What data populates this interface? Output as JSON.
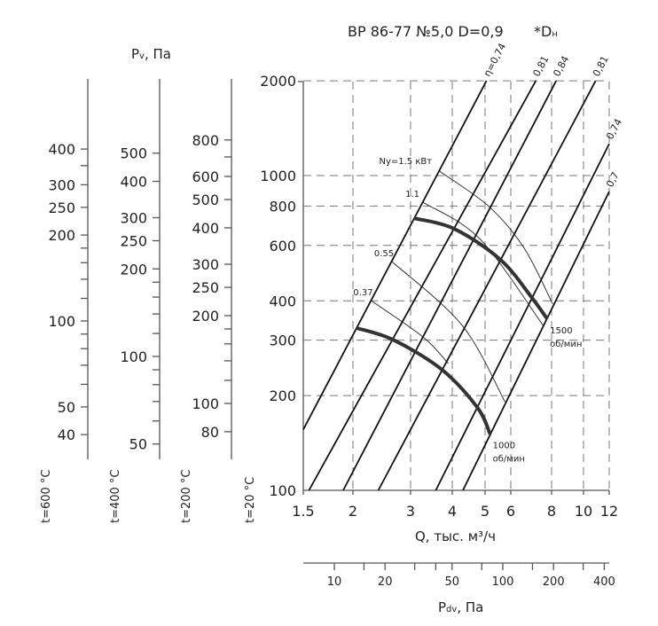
{
  "chart_data": {
    "type": "line",
    "title": "ВР 86-77 №5,0 D=0,9",
    "title_note": {
      "symbol": "*D",
      "sub": "н"
    },
    "grid": true,
    "x_axis": {
      "label": {
        "text": "Q, тыс. м³/ч"
      },
      "scale": "log",
      "range": [
        1.5,
        12
      ],
      "ticks": [
        1.5,
        2,
        3,
        4,
        5,
        6,
        8,
        10,
        12
      ]
    },
    "y_axis": {
      "label": {
        "symbol": "P",
        "sub": "v",
        "rest": ", Па"
      },
      "scale": "log",
      "range": [
        100,
        2000
      ],
      "ticks": [
        100,
        200,
        300,
        400,
        600,
        800,
        1000,
        2000
      ]
    },
    "temperature_scales": [
      {
        "label": "t=600 °C",
        "ticks": [
          40,
          50,
          100,
          200,
          250,
          300,
          400
        ],
        "minor": [
          60,
          70,
          80,
          90,
          120,
          140,
          160,
          180,
          350
        ]
      },
      {
        "label": "t=400 °C",
        "ticks": [
          50,
          100,
          200,
          250,
          300,
          400,
          500
        ],
        "minor": [
          60,
          70,
          80,
          90,
          120,
          140,
          160,
          180
        ]
      },
      {
        "label": "t=200 °C",
        "ticks": [
          80,
          100,
          200,
          250,
          300,
          400,
          500,
          600,
          800
        ],
        "minor": [
          120,
          140,
          160,
          180,
          700
        ]
      },
      {
        "label": "t=20 °C"
      }
    ],
    "pdv_axis": {
      "label": {
        "symbol": "P",
        "sub": "dv",
        "rest": ", Па"
      },
      "scale": "log",
      "ticks": [
        10,
        20,
        50,
        100,
        200,
        400
      ],
      "minor": [
        15,
        30,
        40,
        75,
        150,
        300
      ]
    },
    "efficiency_lines": [
      {
        "label": "η=0,74",
        "points": [
          [
            1.5,
            156
          ],
          [
            5.05,
            2000
          ]
        ]
      },
      {
        "label": "0,81",
        "points": [
          [
            1.55,
            100
          ],
          [
            7.16,
            2000
          ]
        ]
      },
      {
        "label": "0,84",
        "points": [
          [
            1.89,
            100
          ],
          [
            8.26,
            2000
          ]
        ]
      },
      {
        "label": "0,81",
        "points": [
          [
            2.39,
            100
          ],
          [
            10.9,
            2000
          ]
        ]
      },
      {
        "label": "0,74",
        "points": [
          [
            3.57,
            100
          ],
          [
            12,
            1262
          ]
        ]
      },
      {
        "label": "0,7",
        "points": [
          [
            4.3,
            100
          ],
          [
            12,
            890
          ]
        ]
      }
    ],
    "speed_curves": [
      {
        "label": "1500",
        "unit": "об/мин",
        "points": [
          [
            3.07,
            732
          ],
          [
            4.06,
            677
          ],
          [
            5.58,
            540
          ],
          [
            6.94,
            411
          ],
          [
            7.76,
            350
          ]
        ]
      },
      {
        "label": "1000",
        "unit": "об/мин",
        "points": [
          [
            2.05,
            328
          ],
          [
            2.65,
            301
          ],
          [
            3.72,
            242
          ],
          [
            4.75,
            183
          ],
          [
            5.18,
            151
          ]
        ]
      }
    ],
    "power_curves": [
      {
        "label": "Nу=1.5 кВт",
        "points": [
          [
            3.66,
            1033
          ],
          [
            5.15,
            796
          ],
          [
            6.6,
            587
          ],
          [
            8.06,
            391
          ]
        ]
      },
      {
        "label": "1.1",
        "points": [
          [
            3.27,
            822
          ],
          [
            4.84,
            627
          ],
          [
            7.57,
            332
          ]
        ]
      },
      {
        "label": "0.55",
        "points": [
          [
            2.63,
            533
          ],
          [
            4.28,
            334
          ],
          [
            5.76,
            191
          ]
        ]
      },
      {
        "label": "0.37",
        "points": [
          [
            2.27,
            401
          ],
          [
            3.27,
            307
          ],
          [
            3.89,
            253
          ]
        ]
      }
    ]
  }
}
